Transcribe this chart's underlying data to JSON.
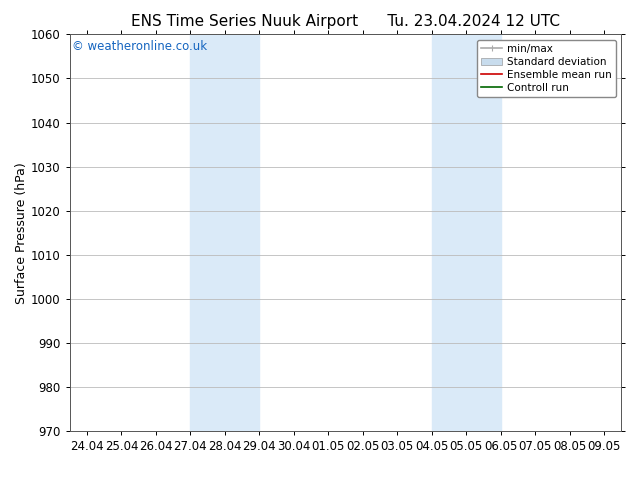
{
  "title_left": "ENS Time Series Nuuk Airport",
  "title_right": "Tu. 23.04.2024 12 UTC",
  "ylabel": "Surface Pressure (hPa)",
  "ylim": [
    970,
    1060
  ],
  "yticks": [
    970,
    980,
    990,
    1000,
    1010,
    1020,
    1030,
    1040,
    1050,
    1060
  ],
  "x_labels": [
    "24.04",
    "25.04",
    "26.04",
    "27.04",
    "28.04",
    "29.04",
    "30.04",
    "01.05",
    "02.05",
    "03.05",
    "04.05",
    "05.05",
    "06.05",
    "07.05",
    "08.05",
    "09.05"
  ],
  "x_values": [
    0,
    1,
    2,
    3,
    4,
    5,
    6,
    7,
    8,
    9,
    10,
    11,
    12,
    13,
    14,
    15
  ],
  "shaded_regions": [
    {
      "xmin": 3,
      "xmax": 5,
      "color": "#daeaf8"
    },
    {
      "xmin": 10,
      "xmax": 12,
      "color": "#daeaf8"
    }
  ],
  "watermark_text": "© weatheronline.co.uk",
  "watermark_color": "#1565c0",
  "legend_entries": [
    {
      "label": "min/max",
      "color": "#aaaaaa",
      "lw": 1.2,
      "style": "line_with_caps"
    },
    {
      "label": "Standard deviation",
      "color": "#c8dced",
      "lw": 8,
      "style": "band"
    },
    {
      "label": "Ensemble mean run",
      "color": "#cc0000",
      "lw": 1.2,
      "style": "line"
    },
    {
      "label": "Controll run",
      "color": "#006600",
      "lw": 1.2,
      "style": "line"
    }
  ],
  "background_color": "#ffffff",
  "grid_color": "#bbbbbb",
  "spine_color": "#555555",
  "title_fontsize": 11,
  "tick_fontsize": 8.5,
  "label_fontsize": 9,
  "watermark_fontsize": 8.5,
  "legend_fontsize": 7.5
}
